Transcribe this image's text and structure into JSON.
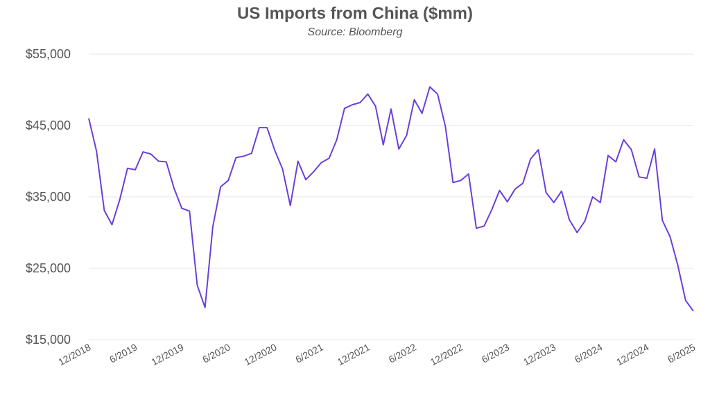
{
  "chart_data": {
    "type": "line",
    "title": "US Imports from China ($mm)",
    "subtitle": "Source: Bloomberg",
    "xlabel": "",
    "ylabel": "",
    "ylim": [
      15000,
      55000
    ],
    "yticks": [
      15000,
      25000,
      35000,
      45000,
      55000
    ],
    "ytick_labels": [
      "$15,000",
      "$25,000",
      "$35,000",
      "$45,000",
      "$55,000"
    ],
    "xtick_labels": [
      "12/2018",
      "6/2019",
      "12/2019",
      "6/2020",
      "12/2020",
      "6/2021",
      "12/2021",
      "6/2022",
      "12/2022",
      "6/2023",
      "12/2023",
      "6/2024",
      "12/2024",
      "6/2025"
    ],
    "grid": true,
    "series_color": "#6a3fd8",
    "series": [
      {
        "x": [
          "12/2018",
          "1/2019",
          "2/2019",
          "3/2019",
          "4/2019",
          "5/2019",
          "6/2019",
          "7/2019",
          "8/2019",
          "9/2019",
          "10/2019",
          "11/2019",
          "12/2019",
          "1/2020",
          "2/2020",
          "3/2020",
          "4/2020",
          "5/2020",
          "6/2020",
          "7/2020",
          "8/2020",
          "9/2020",
          "10/2020",
          "11/2020",
          "12/2020",
          "1/2021",
          "2/2021",
          "3/2021",
          "4/2021",
          "5/2021",
          "6/2021",
          "7/2021",
          "8/2021",
          "9/2021",
          "10/2021",
          "11/2021",
          "12/2021",
          "1/2022",
          "2/2022",
          "3/2022",
          "4/2022",
          "5/2022",
          "6/2022",
          "7/2022",
          "8/2022",
          "9/2022",
          "10/2022",
          "11/2022",
          "12/2022",
          "1/2023",
          "2/2023",
          "3/2023",
          "4/2023",
          "5/2023",
          "6/2023",
          "7/2023",
          "8/2023",
          "9/2023",
          "10/2023",
          "11/2023",
          "12/2023",
          "1/2024",
          "2/2024",
          "3/2024",
          "4/2024",
          "5/2024",
          "6/2024",
          "7/2024",
          "8/2024",
          "9/2024",
          "10/2024",
          "11/2024",
          "12/2024",
          "1/2025",
          "2/2025",
          "3/2025",
          "4/2025",
          "5/2025",
          "6/2025"
        ],
        "values": [
          46000,
          41400,
          33100,
          31100,
          34600,
          39000,
          38800,
          41300,
          41000,
          40000,
          39900,
          36200,
          33400,
          33000,
          22600,
          19500,
          30800,
          36400,
          37300,
          40500,
          40700,
          41100,
          44700,
          44700,
          41500,
          38900,
          33800,
          40000,
          37400,
          38500,
          39800,
          40400,
          43000,
          47400,
          47900,
          48200,
          49400,
          47700,
          42300,
          47300,
          41700,
          43600,
          48600,
          46700,
          50400,
          49400,
          44900,
          37000,
          37300,
          38200,
          30600,
          30900,
          33200,
          35900,
          34300,
          36100,
          36900,
          40300,
          41600,
          35600,
          34200,
          35800,
          31800,
          30000,
          31600,
          35000,
          34200,
          40800,
          39900,
          43000,
          41600,
          37800,
          37600,
          41700,
          31700,
          29400,
          25400,
          20500,
          19000
        ]
      }
    ]
  }
}
